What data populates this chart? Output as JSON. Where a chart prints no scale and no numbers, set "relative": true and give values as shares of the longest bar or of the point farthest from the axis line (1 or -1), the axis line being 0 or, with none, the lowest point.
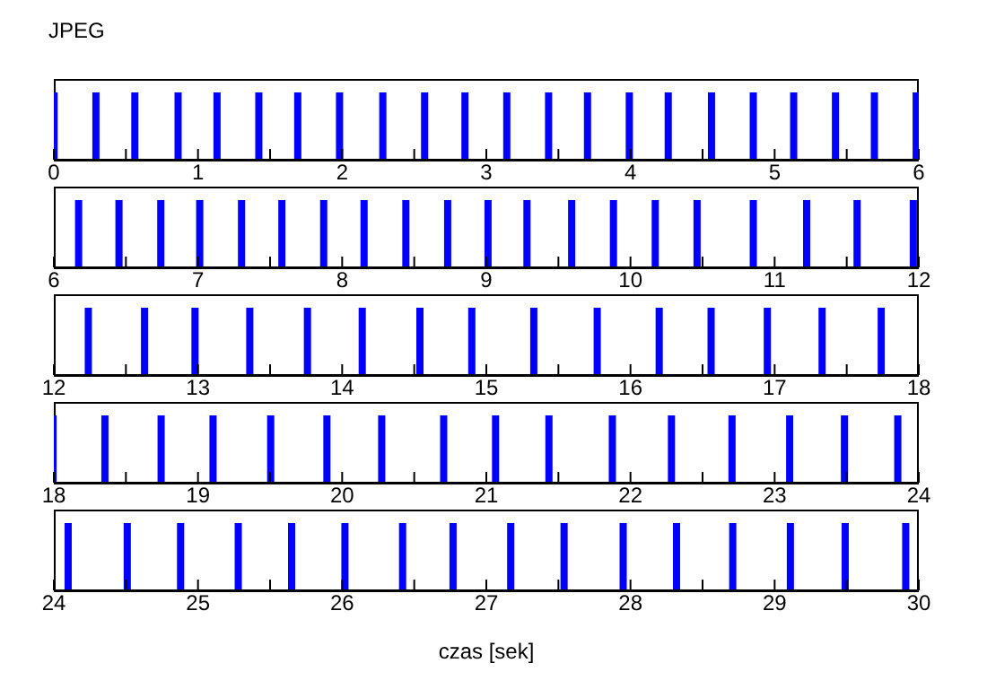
{
  "chart_data": [
    {
      "type": "bar",
      "title": "JPEG",
      "relative": true,
      "color": "#0000ff",
      "x": [
        0,
        0.29,
        0.56,
        0.86,
        1.13,
        1.42,
        1.69,
        1.98,
        2.28,
        2.57,
        2.85,
        3.14,
        3.43,
        3.7,
        3.99,
        4.26,
        4.56,
        4.85,
        5.13,
        5.42,
        5.69,
        5.98
      ],
      "values": [
        1,
        1,
        1,
        1,
        1,
        1,
        1,
        1,
        1,
        1,
        1,
        1,
        1,
        1,
        1,
        1,
        1,
        1,
        1,
        1,
        1,
        1
      ],
      "xlim": [
        0,
        6
      ],
      "xticks": [
        0,
        {
          "value": 0.5,
          "label": null
        },
        1,
        {
          "value": 1.5,
          "label": null
        },
        2,
        {
          "value": 2.5,
          "label": null
        },
        3,
        {
          "value": 3.5,
          "label": null
        },
        4,
        {
          "value": 4.5,
          "label": null
        },
        5,
        {
          "value": 5.5,
          "label": null
        },
        6
      ]
    },
    {
      "type": "bar",
      "relative": true,
      "color": "#0000ff",
      "x": [
        6.17,
        6.45,
        6.74,
        7.01,
        7.3,
        7.58,
        7.87,
        8.15,
        8.44,
        8.73,
        9.01,
        9.28,
        9.59,
        9.88,
        10.17,
        10.46,
        10.85,
        11.22,
        11.57,
        11.96
      ],
      "values": [
        1,
        1,
        1,
        1,
        1,
        1,
        1,
        1,
        1,
        1,
        1,
        1,
        1,
        1,
        1,
        1,
        1,
        1,
        1,
        1
      ],
      "xlim": [
        6,
        12
      ],
      "xticks": [
        6,
        {
          "value": 6.5,
          "label": null
        },
        7,
        {
          "value": 7.5,
          "label": null
        },
        8,
        {
          "value": 8.5,
          "label": null
        },
        9,
        {
          "value": 9.5,
          "label": null
        },
        10,
        {
          "value": 10.5,
          "label": null
        },
        11,
        {
          "value": 11.5,
          "label": null
        },
        12
      ]
    },
    {
      "type": "bar",
      "relative": true,
      "color": "#0000ff",
      "x": [
        12.24,
        12.63,
        12.98,
        13.36,
        13.76,
        14.14,
        14.54,
        14.9,
        15.33,
        15.77,
        16.2,
        16.56,
        16.95,
        17.33,
        17.74
      ],
      "values": [
        1,
        1,
        1,
        1,
        1,
        1,
        1,
        1,
        1,
        1,
        1,
        1,
        1,
        1,
        1
      ],
      "xlim": [
        12,
        18
      ],
      "xticks": [
        12,
        {
          "value": 12.5,
          "label": null
        },
        13,
        {
          "value": 13.5,
          "label": null
        },
        14,
        {
          "value": 14.5,
          "label": null
        },
        15,
        {
          "value": 15.5,
          "label": null
        },
        16,
        {
          "value": 16.5,
          "label": null
        },
        17,
        {
          "value": 17.5,
          "label": null
        },
        18
      ]
    },
    {
      "type": "bar",
      "relative": true,
      "color": "#0000ff",
      "x": [
        18,
        18.36,
        18.75,
        19.11,
        19.51,
        19.9,
        20.28,
        20.71,
        21.07,
        21.44,
        21.88,
        22.29,
        22.71,
        23.11,
        23.49,
        23.86
      ],
      "values": [
        1,
        1,
        1,
        1,
        1,
        1,
        1,
        1,
        1,
        1,
        1,
        1,
        1,
        1,
        1,
        1
      ],
      "xlim": [
        18,
        24
      ],
      "xticks": [
        18,
        {
          "value": 18.5,
          "label": null
        },
        19,
        {
          "value": 19.5,
          "label": null
        },
        20,
        {
          "value": 20.5,
          "label": null
        },
        21,
        {
          "value": 21.5,
          "label": null
        },
        22,
        {
          "value": 22.5,
          "label": null
        },
        23,
        {
          "value": 23.5,
          "label": null
        },
        24
      ]
    },
    {
      "type": "bar",
      "relative": true,
      "color": "#0000ff",
      "xlabel": "czas [sek]",
      "x": [
        24.1,
        24.51,
        24.88,
        25.28,
        25.65,
        26.02,
        26.42,
        26.77,
        27.17,
        27.54,
        27.95,
        28.32,
        28.71,
        29.11,
        29.49,
        29.91
      ],
      "values": [
        1,
        1,
        1,
        1,
        1,
        1,
        1,
        1,
        1,
        1,
        1,
        1,
        1,
        1,
        1,
        1
      ],
      "xlim": [
        24,
        30
      ],
      "xticks": [
        24,
        {
          "value": 24.5,
          "label": null
        },
        25,
        {
          "value": 25.5,
          "label": null
        },
        26,
        {
          "value": 26.5,
          "label": null
        },
        27,
        {
          "value": 27.5,
          "label": null
        },
        28,
        {
          "value": 28.5,
          "label": null
        },
        29,
        {
          "value": 29.5,
          "label": null
        },
        30
      ]
    }
  ]
}
